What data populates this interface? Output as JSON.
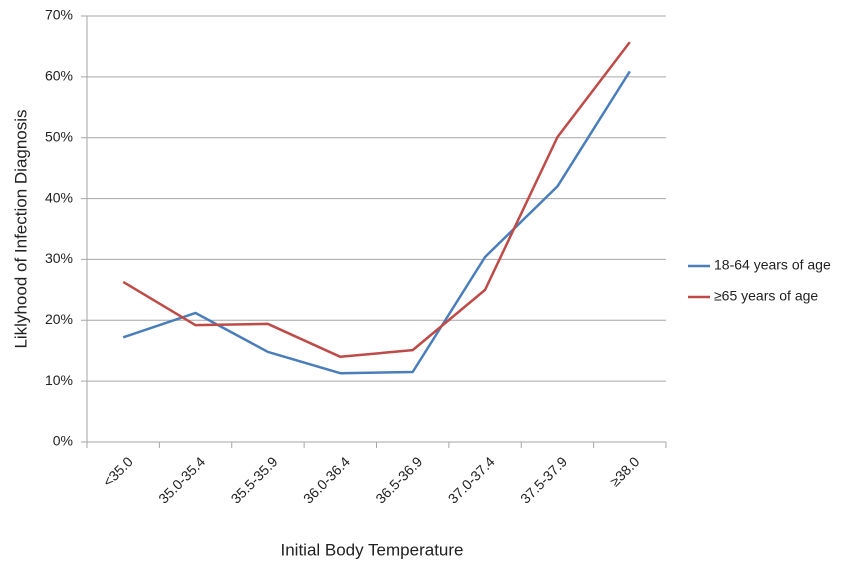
{
  "chart_data": {
    "type": "line",
    "x_label": "Initial Body Temperature",
    "y_label": "Liklyhood of Infection Diagnosis",
    "categories": [
      "<35.0",
      "35.0-35.4",
      "35.5-35.9",
      "36.0-36.4",
      "36.5-36.9",
      "37.0-37.4",
      "37.5-37.9",
      "≥38.0"
    ],
    "series": [
      {
        "name": "18-64 years of age",
        "color": "#4a7ebb",
        "values": [
          17.2,
          21.2,
          14.8,
          11.3,
          11.5,
          30.4,
          42.0,
          60.9
        ]
      },
      {
        "name": "≥65 years of age",
        "color": "#be4b48",
        "values": [
          26.3,
          19.2,
          19.4,
          14.0,
          15.1,
          25.0,
          50.1,
          65.7
        ]
      }
    ],
    "ylim": [
      0,
      70
    ],
    "yticks": [
      {
        "value": 0,
        "label": "0%"
      },
      {
        "value": 10,
        "label": "10%"
      },
      {
        "value": 20,
        "label": "20%"
      },
      {
        "value": 30,
        "label": "30%"
      },
      {
        "value": 40,
        "label": "40%"
      },
      {
        "value": 50,
        "label": "50%"
      },
      {
        "value": 60,
        "label": "60%"
      },
      {
        "value": 70,
        "label": "70%"
      }
    ],
    "grid": true,
    "legend": "right"
  }
}
